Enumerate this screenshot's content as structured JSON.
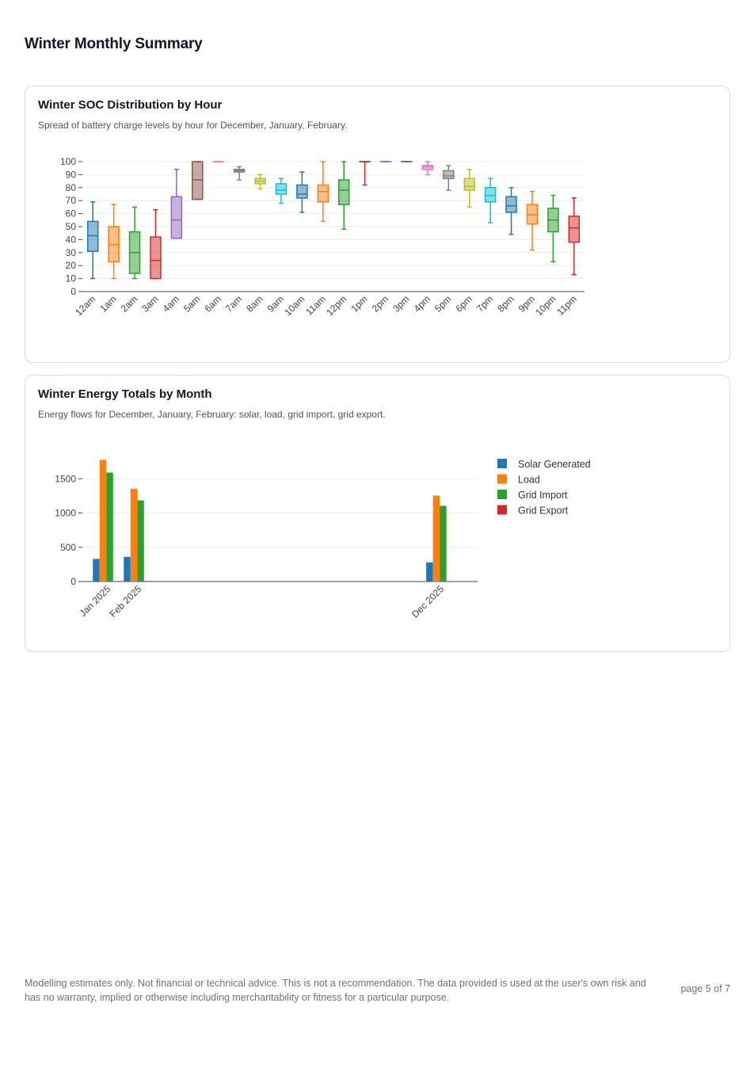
{
  "page": {
    "title": "Winter Monthly Summary",
    "disclaimer": "Modelling estimates only. Not financial or technical advice. This is not a recommendation. The data provided is used at the user's own risk and has no warranty, implied or otherwise including merchantability or fitness for a particular purpose.",
    "page_number": "page 5 of 7"
  },
  "cards": [
    {
      "title": "Winter SOC Distribution by Hour",
      "subtitle": "Spread of battery charge levels by hour for December, January, February."
    },
    {
      "title": "Winter Energy Totals by Month",
      "subtitle": "Energy flows for December, January, February: solar, load, grid import, grid export."
    }
  ],
  "chart_data": [
    {
      "type": "box",
      "title": "",
      "xlabel": "",
      "ylabel": "",
      "ylim": [
        0,
        100
      ],
      "yticks": [
        0,
        10,
        20,
        30,
        40,
        50,
        60,
        70,
        80,
        90,
        100
      ],
      "grid": true,
      "legend": "none",
      "colors": [
        "#1f77b4",
        "#ff7f0e",
        "#2ca02c",
        "#d62728",
        "#9467bd",
        "#8c564b",
        "#e377c2",
        "#7f7f7f",
        "#bcbd22",
        "#17becf"
      ],
      "categories": [
        "12am",
        "1am",
        "2am",
        "3am",
        "4am",
        "5am",
        "6am",
        "7am",
        "8am",
        "9am",
        "10am",
        "11am",
        "12pm",
        "1pm",
        "2pm",
        "3pm",
        "4pm",
        "5pm",
        "6pm",
        "7pm",
        "8pm",
        "9pm",
        "10pm",
        "11pm"
      ],
      "boxes": [
        {
          "min": 10,
          "q1": 31,
          "median": 43,
          "q3": 54,
          "max": 69
        },
        {
          "min": 10,
          "q1": 23,
          "median": 36,
          "q3": 50,
          "max": 67
        },
        {
          "min": 10,
          "q1": 14,
          "median": 30,
          "q3": 46,
          "max": 65
        },
        {
          "min": 10,
          "q1": 10,
          "median": 24,
          "q3": 42,
          "max": 63
        },
        {
          "min": 41,
          "q1": 41,
          "median": 55,
          "q3": 73,
          "max": 94
        },
        {
          "min": 71,
          "q1": 71,
          "median": 86,
          "q3": 100,
          "max": 100
        },
        {
          "min": 100,
          "q1": 100,
          "median": 100,
          "q3": 100,
          "max": 100
        },
        {
          "min": 86,
          "q1": 92,
          "median": 93,
          "q3": 94,
          "max": 96
        },
        {
          "min": 79,
          "q1": 83,
          "median": 85,
          "q3": 87,
          "max": 90
        },
        {
          "min": 68,
          "q1": 75,
          "median": 78,
          "q3": 83,
          "max": 87
        },
        {
          "min": 61,
          "q1": 72,
          "median": 75,
          "q3": 82,
          "max": 92
        },
        {
          "min": 54,
          "q1": 69,
          "median": 77,
          "q3": 82,
          "max": 100
        },
        {
          "min": 48,
          "q1": 67,
          "median": 78,
          "q3": 86,
          "max": 100
        },
        {
          "min": 82,
          "q1": 100,
          "median": 100,
          "q3": 100,
          "max": 100
        },
        {
          "min": 100,
          "q1": 100,
          "median": 100,
          "q3": 100,
          "max": 100
        },
        {
          "min": 100,
          "q1": 100,
          "median": 100,
          "q3": 100,
          "max": 100
        },
        {
          "min": 90,
          "q1": 94,
          "median": 96,
          "q3": 97,
          "max": 100
        },
        {
          "min": 78,
          "q1": 87,
          "median": 89,
          "q3": 93,
          "max": 97
        },
        {
          "min": 65,
          "q1": 78,
          "median": 81,
          "q3": 87,
          "max": 94
        },
        {
          "min": 53,
          "q1": 69,
          "median": 74,
          "q3": 80,
          "max": 87
        },
        {
          "min": 44,
          "q1": 61,
          "median": 66,
          "q3": 73,
          "max": 80
        },
        {
          "min": 32,
          "q1": 52,
          "median": 59,
          "q3": 67,
          "max": 77
        },
        {
          "min": 23,
          "q1": 46,
          "median": 55,
          "q3": 64,
          "max": 74
        },
        {
          "min": 13,
          "q1": 38,
          "median": 49,
          "q3": 58,
          "max": 72
        }
      ]
    },
    {
      "type": "bar",
      "title": "",
      "xlabel": "",
      "ylabel": "",
      "x_axis": "date",
      "xlim": [
        "2024-12-08",
        "2026-01-08"
      ],
      "ylim": [
        0,
        1850
      ],
      "yticks": [
        0,
        500,
        1000,
        1500
      ],
      "grid": true,
      "legend": "right",
      "categories": [
        "Jan 2025",
        "Feb 2025",
        "Dec 2025"
      ],
      "category_dates": [
        "2025-01-01",
        "2025-02-01",
        "2025-12-01"
      ],
      "series": [
        {
          "name": "Solar Generated",
          "color": "#1f77b4",
          "values": [
            330,
            360,
            280
          ]
        },
        {
          "name": "Load",
          "color": "#ff7f0e",
          "values": [
            1775,
            1355,
            1255
          ]
        },
        {
          "name": "Grid Import",
          "color": "#2ca02c",
          "values": [
            1590,
            1185,
            1105
          ]
        },
        {
          "name": "Grid Export",
          "color": "#d62728",
          "values": [
            0,
            8,
            0
          ]
        }
      ]
    }
  ]
}
